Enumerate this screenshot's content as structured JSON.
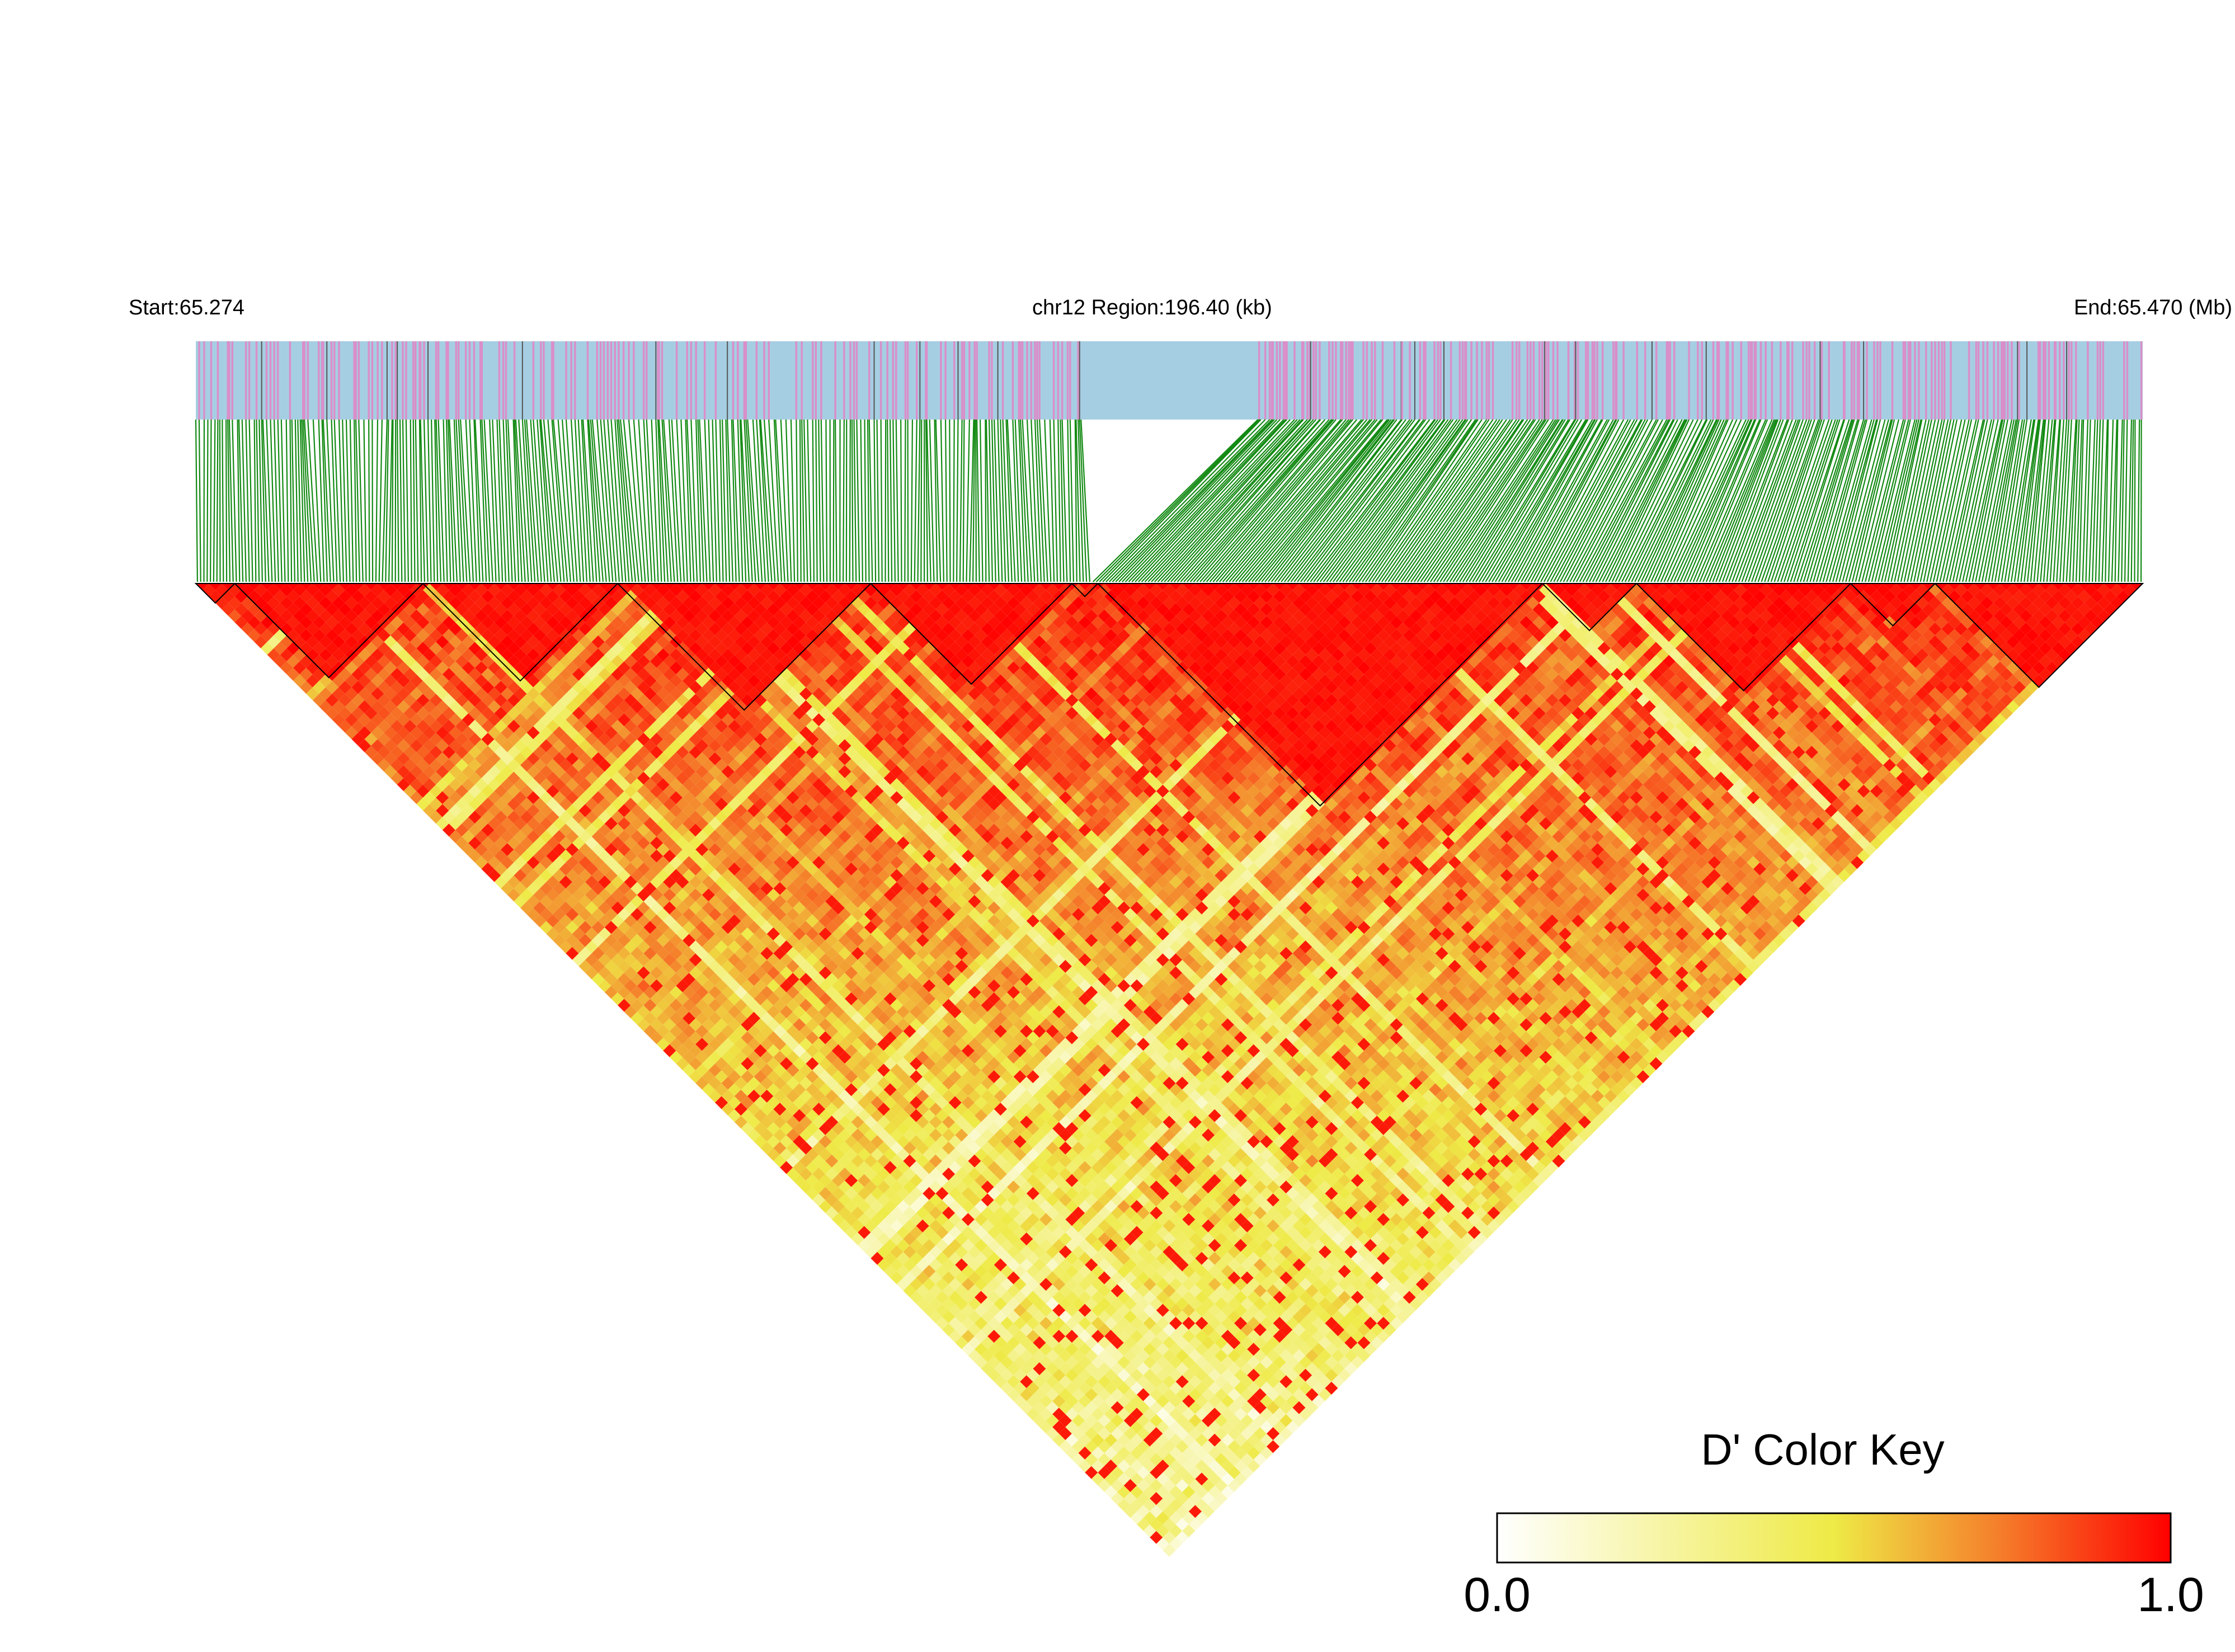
{
  "header": {
    "start_label": "Start:65.274",
    "region_label": "chr12 Region:196.40 (kb)",
    "end_label": "End:65.470 (Mb)"
  },
  "colors": {
    "track_background": "#a6cee3",
    "snp_tick_pink": "#d98fc9",
    "snp_tick_dark": "#555555",
    "connector_green": "#138a13",
    "ld_low": "#ffffff",
    "ld_mid": "#eeea46",
    "ld_high": "#ff0000",
    "block_outline": "#000000"
  },
  "chart_data": {
    "type": "heatmap",
    "title": "",
    "chromosome": "chr12",
    "region_start_mb": 65.274,
    "region_end_mb": 65.47,
    "region_length_kb": 196.4,
    "metric": "D'",
    "value_range": [
      0.0,
      1.0
    ],
    "snp_count_estimate": 600,
    "haplotype_blocks_estimate": 11,
    "color_key": {
      "title": "D' Color Key",
      "min_label": "0.0",
      "max_label": "1.0",
      "stops": [
        {
          "value": 0.0,
          "color": "#ffffff"
        },
        {
          "value": 0.5,
          "color": "#eeea46"
        },
        {
          "value": 0.75,
          "color": "#f57c2a"
        },
        {
          "value": 1.0,
          "color": "#ff0000"
        }
      ]
    }
  }
}
